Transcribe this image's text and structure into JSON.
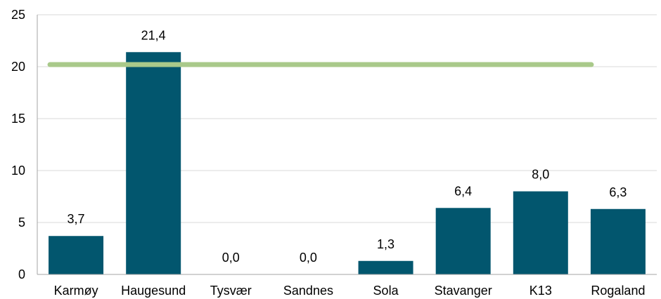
{
  "chart_data": {
    "type": "bar",
    "categories": [
      "Karmøy",
      "Haugesund",
      "Tysvær",
      "Sandnes",
      "Sola",
      "Stavanger",
      "K13",
      "Rogaland"
    ],
    "values": [
      3.7,
      21.4,
      0.0,
      0.0,
      1.3,
      6.4,
      8.0,
      6.3
    ],
    "value_labels": [
      "3,7",
      "21,4",
      "0,0",
      "0,0",
      "1,3",
      "6,4",
      "8,0",
      "6,3"
    ],
    "ylim": [
      0,
      25
    ],
    "yticks": [
      0,
      5,
      10,
      15,
      20,
      25
    ],
    "ytick_labels": [
      "0",
      "5",
      "10",
      "15",
      "20",
      "25"
    ],
    "reference_line": {
      "y": 20.2
    },
    "grid": true,
    "title": "",
    "xlabel": "",
    "ylabel": "",
    "colors": {
      "bar": "#02566E",
      "reference_line": "#A9C98A",
      "grid": "#D9D9D9",
      "axis": "#A6A6A6"
    }
  }
}
